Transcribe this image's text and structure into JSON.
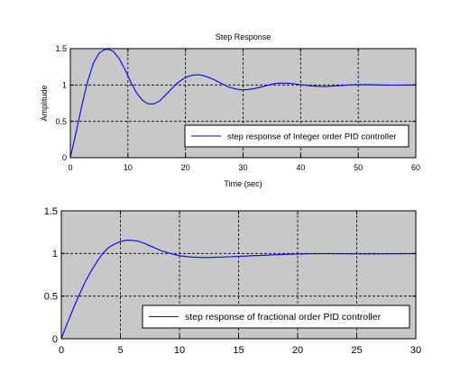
{
  "colors": {
    "figure_background": "#ffffff",
    "axes_background": "#c8c8c8",
    "grid": "#000000",
    "series_line": "#0000ff",
    "legend_background": "#ffffff"
  },
  "chart_data": [
    {
      "type": "line",
      "title": "Step Response",
      "xlabel": "Time (sec)",
      "ylabel": "Amplitude",
      "xlim": [
        0,
        60
      ],
      "ylim": [
        0,
        1.5
      ],
      "xticks": [
        0,
        10,
        20,
        30,
        40,
        50,
        60
      ],
      "yticks": [
        0,
        0.5,
        1,
        1.5
      ],
      "xtick_labels": [
        "0",
        "10",
        "20",
        "30",
        "40",
        "50",
        "60"
      ],
      "ytick_labels": [
        "0",
        "0.5",
        "1",
        "1.5"
      ],
      "grid": true,
      "legend_position": "lower-right",
      "series": [
        {
          "name": "step response of Integer order PID controller",
          "color": "#0000ff",
          "x": [
            0,
            1,
            2,
            3,
            4,
            5,
            6,
            6.7,
            7.5,
            8.5,
            9.5,
            10.5,
            11.5,
            12.5,
            13.5,
            14.5,
            15.5,
            16.5,
            17.5,
            18.5,
            19.5,
            20.5,
            21.5,
            22.5,
            23.5,
            24.5,
            25.5,
            26.5,
            27.5,
            28.5,
            29.5,
            30.5,
            31.5,
            32.5,
            33.5,
            34.5,
            35.5,
            36.5,
            37.5,
            38.5,
            39.5,
            40.5,
            41.5,
            42.5,
            43.5,
            44.5,
            45.5,
            46.5,
            47.5,
            48.5,
            49.5,
            50.5,
            52,
            54,
            56,
            58,
            60
          ],
          "y": [
            0,
            0.35,
            0.72,
            1.05,
            1.3,
            1.44,
            1.49,
            1.49,
            1.46,
            1.36,
            1.21,
            1.04,
            0.89,
            0.79,
            0.74,
            0.74,
            0.78,
            0.86,
            0.94,
            1.02,
            1.08,
            1.12,
            1.14,
            1.14,
            1.12,
            1.09,
            1.05,
            1.01,
            0.97,
            0.95,
            0.935,
            0.935,
            0.945,
            0.96,
            0.98,
            1.0,
            1.02,
            1.025,
            1.025,
            1.02,
            1.01,
            1.0,
            0.99,
            0.985,
            0.98,
            0.98,
            0.985,
            0.99,
            0.995,
            1.0,
            1.005,
            1.005,
            1.005,
            1.0,
            0.998,
            0.999,
            1.0
          ]
        }
      ]
    },
    {
      "type": "line",
      "title": "",
      "xlabel": "",
      "ylabel": "",
      "xlim": [
        0,
        30
      ],
      "ylim": [
        0,
        1.5
      ],
      "xticks": [
        0,
        5,
        10,
        15,
        20,
        25,
        30
      ],
      "yticks": [
        0,
        0.5,
        1,
        1.5
      ],
      "xtick_labels": [
        "0",
        "5",
        "10",
        "15",
        "20",
        "25",
        "30"
      ],
      "ytick_labels": [
        "0",
        "0.5",
        "1",
        "1.5"
      ],
      "grid": true,
      "legend_position": "lower-right",
      "series": [
        {
          "name": "step response of fractional order PID controller",
          "color": "#0000ff",
          "x": [
            0,
            0.5,
            1,
            1.5,
            2,
            2.5,
            3,
            3.5,
            4,
            4.5,
            5,
            5.5,
            6,
            6.5,
            7,
            7.5,
            8,
            8.5,
            9,
            9.5,
            10,
            10.5,
            11,
            11.5,
            12,
            12.5,
            13,
            14,
            15,
            16,
            17,
            18,
            19,
            20,
            21,
            22,
            24,
            26,
            28,
            30
          ],
          "y": [
            0,
            0.18,
            0.35,
            0.51,
            0.66,
            0.79,
            0.9,
            1.0,
            1.07,
            1.11,
            1.14,
            1.155,
            1.155,
            1.145,
            1.12,
            1.09,
            1.06,
            1.03,
            1.01,
            0.99,
            0.975,
            0.965,
            0.958,
            0.955,
            0.953,
            0.953,
            0.955,
            0.96,
            0.966,
            0.972,
            0.978,
            0.984,
            0.99,
            0.994,
            0.996,
            0.997,
            0.996,
            0.995,
            0.996,
            0.997
          ]
        }
      ]
    }
  ]
}
